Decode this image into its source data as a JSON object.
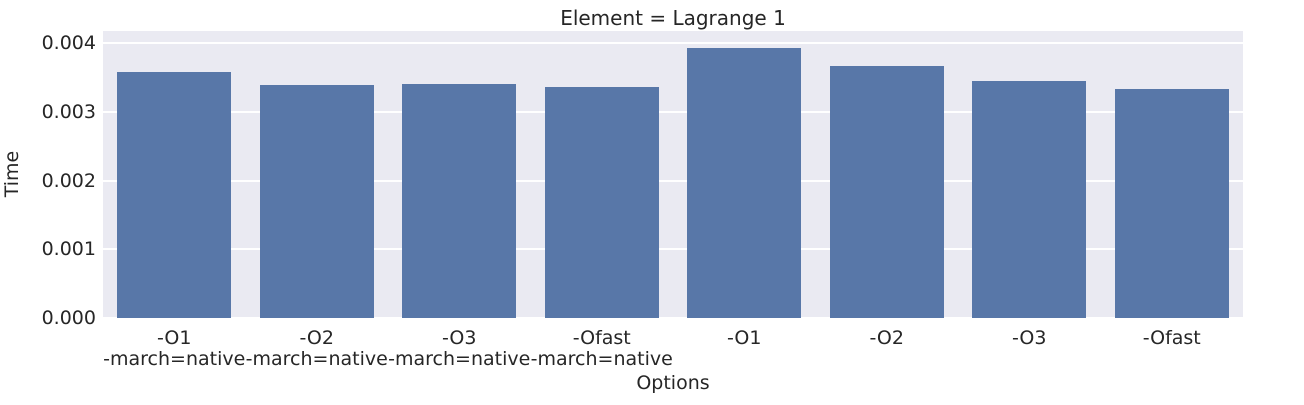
{
  "chart_data": {
    "type": "bar",
    "title": "Element = Lagrange 1",
    "xlabel": "Options",
    "ylabel": "Time",
    "categories": [
      "-O1\n-march=native",
      "-O2\n-march=native",
      "-O3\n-march=native",
      "-Ofast\n-march=native",
      "-O1",
      "-O2",
      "-O3",
      "-Ofast"
    ],
    "values": [
      0.00358,
      0.00339,
      0.00341,
      0.00336,
      0.00393,
      0.00367,
      0.00345,
      0.00333
    ],
    "ytick_values": [
      0.0,
      0.001,
      0.002,
      0.003,
      0.004
    ],
    "ytick_labels": [
      "0.000",
      "0.001",
      "0.002",
      "0.003",
      "0.004"
    ],
    "ylim": [
      0,
      0.00418
    ],
    "bar_width_fraction": 0.8,
    "grid": true,
    "legend_position": "none",
    "colors": {
      "bar": "#5877A8",
      "plot_background": "#EAEAF2",
      "gridline": "#FFFFFF",
      "text": "#262626",
      "figure_background": "#FFFFFF"
    }
  }
}
